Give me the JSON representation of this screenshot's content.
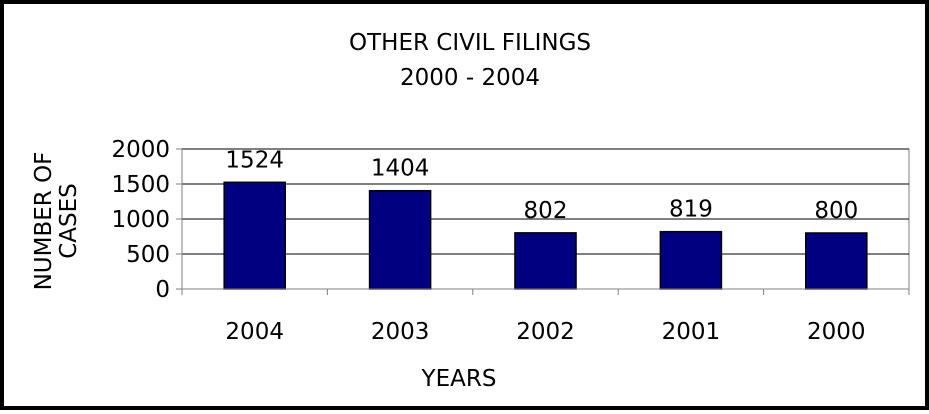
{
  "chart_data": {
    "type": "bar",
    "title": "OTHER CIVIL FILINGS",
    "subtitle": "2000 - 2004",
    "xlabel": "YEARS",
    "ylabel_lines": [
      "NUMBER OF",
      "CASES"
    ],
    "categories": [
      "2004",
      "2003",
      "2002",
      "2001",
      "2000"
    ],
    "values": [
      1524,
      1404,
      802,
      819,
      800
    ],
    "data_labels": [
      "1524",
      "1404",
      "802",
      "819",
      "800"
    ],
    "yticks": [
      "0",
      "500",
      "1000",
      "1500",
      "2000"
    ],
    "ylim": [
      0,
      2000
    ],
    "grid": true,
    "legend": "none",
    "colors": {
      "bar_fill": "#000080",
      "bar_stroke": "#000000",
      "axis": "#808080",
      "grid": "#000000",
      "border": "#000000"
    }
  }
}
